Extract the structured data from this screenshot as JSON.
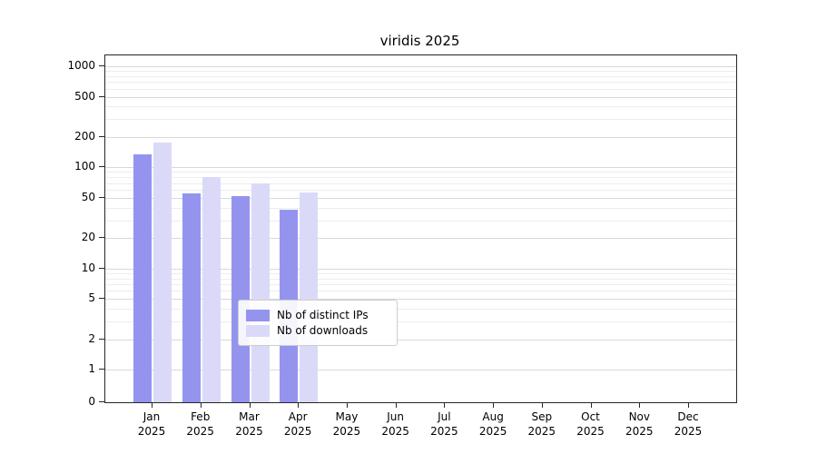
{
  "chart_data": {
    "type": "bar",
    "title": "viridis 2025",
    "year_label": "2025",
    "categories": [
      "Jan",
      "Feb",
      "Mar",
      "Apr",
      "May",
      "Jun",
      "Jul",
      "Aug",
      "Sep",
      "Oct",
      "Nov",
      "Dec"
    ],
    "series": [
      {
        "name": "Nb of distinct IPs",
        "color": "#9494ef",
        "values": [
          135,
          55,
          52,
          38,
          0,
          0,
          0,
          0,
          0,
          0,
          0,
          0
        ]
      },
      {
        "name": "Nb of downloads",
        "color": "#dadaf8",
        "values": [
          175,
          80,
          70,
          57,
          0,
          0,
          0,
          0,
          0,
          0,
          0,
          0
        ]
      }
    ],
    "yscale": "symlog",
    "yticks": [
      0,
      1,
      2,
      5,
      10,
      20,
      50,
      100,
      200,
      500,
      1000
    ],
    "ylim": [
      0,
      1000
    ],
    "grid": true,
    "legend_position": "bottom-center-inside"
  }
}
